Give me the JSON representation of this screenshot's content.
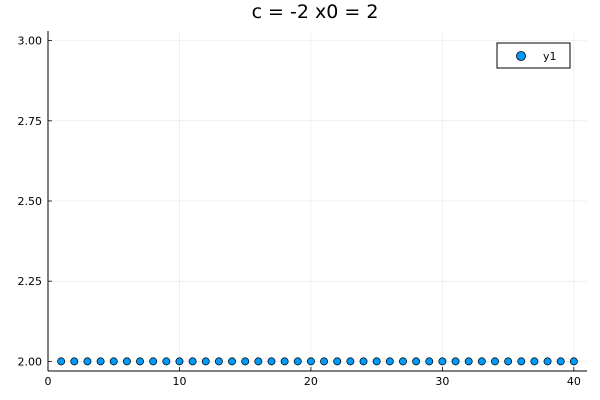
{
  "chart_data": {
    "type": "scatter",
    "title": "c = -2   x0 = 2",
    "xlabel": "",
    "ylabel": "",
    "xlim": [
      0,
      41
    ],
    "ylim": [
      1.97,
      3.03
    ],
    "x_ticks": [
      0,
      10,
      20,
      30,
      40
    ],
    "y_ticks": [
      2.0,
      2.25,
      2.5,
      2.75,
      3.0
    ],
    "x_tick_labels": [
      "0",
      "10",
      "20",
      "30",
      "40"
    ],
    "y_tick_labels": [
      "2.00",
      "2.25",
      "2.50",
      "2.75",
      "3.00"
    ],
    "grid": true,
    "legend_position": "top-right",
    "series": [
      {
        "name": "y1",
        "color": "#009AFA",
        "x": [
          1,
          2,
          3,
          4,
          5,
          6,
          7,
          8,
          9,
          10,
          11,
          12,
          13,
          14,
          15,
          16,
          17,
          18,
          19,
          20,
          21,
          22,
          23,
          24,
          25,
          26,
          27,
          28,
          29,
          30,
          31,
          32,
          33,
          34,
          35,
          36,
          37,
          38,
          39,
          40
        ],
        "y": [
          2,
          2,
          2,
          2,
          2,
          2,
          2,
          2,
          2,
          2,
          2,
          2,
          2,
          2,
          2,
          2,
          2,
          2,
          2,
          2,
          2,
          2,
          2,
          2,
          2,
          2,
          2,
          2,
          2,
          2,
          2,
          2,
          2,
          2,
          2,
          2,
          2,
          2,
          2,
          2
        ]
      }
    ]
  }
}
